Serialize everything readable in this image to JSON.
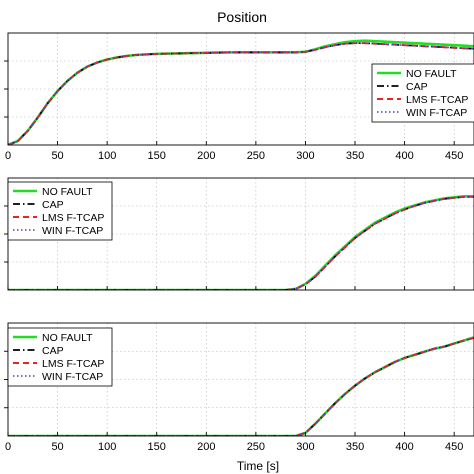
{
  "chart_data": [
    {
      "type": "line",
      "title": "Position",
      "xlabel": "",
      "ylabel": "",
      "xlim": [
        0,
        470
      ],
      "ylim": [
        0,
        1.1
      ],
      "xticks": [
        0,
        50,
        100,
        150,
        200,
        250,
        300,
        350,
        400,
        450
      ],
      "xtick_labels": [
        "0",
        "50",
        "100",
        "150",
        "200",
        "250",
        "300",
        "350",
        "400",
        "450"
      ],
      "grid": true,
      "legend": "right",
      "series": [
        {
          "name": "NO FAULT",
          "color": "#22dd22",
          "style": "solid",
          "x": [
            0,
            10,
            20,
            30,
            40,
            50,
            60,
            70,
            80,
            90,
            100,
            110,
            120,
            130,
            140,
            150,
            175,
            200,
            225,
            250,
            275,
            290,
            300,
            310,
            320,
            330,
            340,
            350,
            360,
            370,
            380,
            390,
            400,
            410,
            420,
            430,
            440,
            450,
            460,
            470
          ],
          "y": [
            0,
            0.04,
            0.14,
            0.27,
            0.41,
            0.53,
            0.63,
            0.71,
            0.77,
            0.81,
            0.84,
            0.86,
            0.875,
            0.885,
            0.89,
            0.895,
            0.9,
            0.905,
            0.91,
            0.91,
            0.91,
            0.91,
            0.915,
            0.94,
            0.97,
            0.99,
            1.01,
            1.02,
            1.025,
            1.02,
            1.015,
            1.01,
            1.005,
            1.0,
            0.995,
            0.99,
            0.985,
            0.98,
            0.975,
            0.97
          ]
        },
        {
          "name": "CAP",
          "color": "#000000",
          "style": "dashdot",
          "x": [
            0,
            10,
            20,
            30,
            40,
            50,
            60,
            70,
            80,
            90,
            100,
            110,
            120,
            130,
            140,
            150,
            175,
            200,
            225,
            250,
            275,
            290,
            300,
            310,
            320,
            330,
            340,
            350,
            360,
            370,
            380,
            390,
            400,
            410,
            420,
            430,
            440,
            450,
            460,
            470
          ],
          "y": [
            0,
            0.04,
            0.14,
            0.27,
            0.41,
            0.53,
            0.63,
            0.71,
            0.77,
            0.81,
            0.84,
            0.86,
            0.875,
            0.885,
            0.89,
            0.895,
            0.9,
            0.905,
            0.91,
            0.91,
            0.91,
            0.91,
            0.915,
            0.935,
            0.96,
            0.98,
            0.995,
            1.0,
            1.0,
            0.995,
            0.99,
            0.985,
            0.98,
            0.975,
            0.97,
            0.965,
            0.96,
            0.955,
            0.95,
            0.945
          ]
        },
        {
          "name": "LMS F-TCAP",
          "color": "#ee2222",
          "style": "dashed",
          "x": [
            0,
            10,
            20,
            30,
            40,
            50,
            60,
            70,
            80,
            90,
            100,
            110,
            120,
            130,
            140,
            150,
            175,
            200,
            225,
            250,
            275,
            290,
            300,
            310,
            320,
            330,
            340,
            350,
            360,
            370,
            380,
            390,
            400,
            410,
            420,
            430,
            440,
            450,
            460,
            470
          ],
          "y": [
            0,
            0.04,
            0.14,
            0.27,
            0.41,
            0.53,
            0.63,
            0.71,
            0.77,
            0.81,
            0.84,
            0.86,
            0.875,
            0.885,
            0.89,
            0.895,
            0.9,
            0.905,
            0.91,
            0.91,
            0.91,
            0.91,
            0.915,
            0.935,
            0.96,
            0.98,
            0.995,
            1.0,
            1.0,
            0.995,
            0.99,
            0.985,
            0.98,
            0.975,
            0.97,
            0.965,
            0.96,
            0.955,
            0.95,
            0.945
          ]
        },
        {
          "name": "WIN F-TCAP",
          "color": "#4444cc",
          "style": "dotted",
          "x": [
            0,
            10,
            20,
            30,
            40,
            50,
            60,
            70,
            80,
            90,
            100,
            110,
            120,
            130,
            140,
            150,
            175,
            200,
            225,
            250,
            275,
            290,
            300,
            310,
            320,
            330,
            340,
            350,
            360,
            370,
            380,
            390,
            400,
            410,
            420,
            430,
            440,
            450,
            460,
            470
          ],
          "y": [
            0,
            0.04,
            0.14,
            0.27,
            0.41,
            0.53,
            0.63,
            0.71,
            0.77,
            0.81,
            0.84,
            0.86,
            0.875,
            0.885,
            0.89,
            0.895,
            0.9,
            0.905,
            0.91,
            0.91,
            0.91,
            0.91,
            0.915,
            0.935,
            0.96,
            0.98,
            0.995,
            1.0,
            1.0,
            0.995,
            0.99,
            0.985,
            0.98,
            0.975,
            0.97,
            0.965,
            0.96,
            0.955,
            0.95,
            0.945
          ]
        }
      ]
    },
    {
      "type": "line",
      "title": "",
      "xlabel": "",
      "ylabel": "",
      "xlim": [
        0,
        470
      ],
      "ylim": [
        0,
        1.1
      ],
      "xticks": [
        0,
        50,
        100,
        150,
        200,
        250,
        300,
        350,
        400,
        450
      ],
      "xtick_labels": [],
      "grid": true,
      "legend": "left",
      "series": [
        {
          "name": "NO FAULT",
          "color": "#22dd22",
          "style": "solid",
          "x": [
            0,
            50,
            100,
            150,
            200,
            250,
            280,
            290,
            300,
            310,
            320,
            330,
            340,
            350,
            360,
            370,
            380,
            390,
            400,
            410,
            420,
            430,
            440,
            450,
            460,
            470
          ],
          "y": [
            0,
            0,
            0,
            0,
            0,
            0,
            0,
            0.01,
            0.06,
            0.14,
            0.24,
            0.34,
            0.43,
            0.52,
            0.59,
            0.66,
            0.71,
            0.76,
            0.8,
            0.83,
            0.86,
            0.88,
            0.9,
            0.91,
            0.92,
            0.92
          ]
        },
        {
          "name": "CAP",
          "color": "#000000",
          "style": "dashdot",
          "x": [
            0,
            50,
            100,
            150,
            200,
            250,
            280,
            290,
            300,
            310,
            320,
            330,
            340,
            350,
            360,
            370,
            380,
            390,
            400,
            410,
            420,
            430,
            440,
            450,
            460,
            470
          ],
          "y": [
            0,
            0,
            0,
            0,
            0,
            0,
            0,
            0.01,
            0.055,
            0.13,
            0.23,
            0.33,
            0.42,
            0.51,
            0.58,
            0.65,
            0.7,
            0.75,
            0.79,
            0.825,
            0.855,
            0.875,
            0.895,
            0.905,
            0.915,
            0.915
          ]
        },
        {
          "name": "LMS F-TCAP",
          "color": "#ee2222",
          "style": "dashed",
          "x": [
            0,
            50,
            100,
            150,
            200,
            250,
            280,
            290,
            300,
            310,
            320,
            330,
            340,
            350,
            360,
            370,
            380,
            390,
            400,
            410,
            420,
            430,
            440,
            450,
            460,
            470
          ],
          "y": [
            0,
            0,
            0,
            0,
            0,
            0,
            0,
            0.01,
            0.055,
            0.13,
            0.23,
            0.33,
            0.42,
            0.51,
            0.58,
            0.65,
            0.7,
            0.75,
            0.79,
            0.825,
            0.855,
            0.875,
            0.895,
            0.905,
            0.915,
            0.915
          ]
        },
        {
          "name": "WIN F-TCAP",
          "color": "#4444cc",
          "style": "dotted",
          "x": [
            0,
            50,
            100,
            150,
            200,
            250,
            280,
            290,
            300,
            310,
            320,
            330,
            340,
            350,
            360,
            370,
            380,
            390,
            400,
            410,
            420,
            430,
            440,
            450,
            460,
            470
          ],
          "y": [
            0,
            0,
            0,
            0,
            0,
            0,
            0,
            0.01,
            0.055,
            0.13,
            0.23,
            0.33,
            0.42,
            0.51,
            0.58,
            0.65,
            0.7,
            0.75,
            0.79,
            0.825,
            0.855,
            0.875,
            0.895,
            0.905,
            0.915,
            0.915
          ]
        }
      ]
    },
    {
      "type": "line",
      "title": "",
      "xlabel": "Time [s]",
      "ylabel": "",
      "xlim": [
        0,
        470
      ],
      "ylim": [
        0,
        1.1
      ],
      "xticks": [
        0,
        50,
        100,
        150,
        200,
        250,
        300,
        350,
        400,
        450
      ],
      "xtick_labels": [
        "0",
        "50",
        "100",
        "150",
        "200",
        "250",
        "300",
        "350",
        "400",
        "450"
      ],
      "grid": true,
      "legend": "left",
      "series": [
        {
          "name": "NO FAULT",
          "color": "#22dd22",
          "style": "solid",
          "x": [
            0,
            50,
            100,
            150,
            200,
            250,
            290,
            300,
            310,
            320,
            330,
            340,
            350,
            360,
            370,
            380,
            390,
            400,
            410,
            420,
            430,
            440,
            450,
            460,
            470
          ],
          "y": [
            0,
            0,
            0,
            0,
            0,
            0,
            0,
            0.03,
            0.12,
            0.22,
            0.32,
            0.41,
            0.49,
            0.56,
            0.62,
            0.67,
            0.72,
            0.76,
            0.79,
            0.82,
            0.85,
            0.87,
            0.9,
            0.93,
            0.96
          ]
        },
        {
          "name": "CAP",
          "color": "#000000",
          "style": "dashdot",
          "x": [
            0,
            50,
            100,
            150,
            200,
            250,
            290,
            300,
            310,
            320,
            330,
            340,
            350,
            360,
            370,
            380,
            390,
            400,
            410,
            420,
            430,
            440,
            450,
            460,
            470
          ],
          "y": [
            0,
            0,
            0,
            0,
            0,
            0,
            0,
            0.03,
            0.12,
            0.22,
            0.32,
            0.41,
            0.49,
            0.56,
            0.62,
            0.67,
            0.72,
            0.76,
            0.79,
            0.82,
            0.85,
            0.87,
            0.9,
            0.93,
            0.955
          ]
        },
        {
          "name": "LMS F-TCAP",
          "color": "#ee2222",
          "style": "dashed",
          "x": [
            0,
            50,
            100,
            150,
            200,
            250,
            290,
            300,
            310,
            320,
            330,
            340,
            350,
            360,
            370,
            380,
            390,
            400,
            410,
            420,
            430,
            440,
            450,
            460,
            470
          ],
          "y": [
            0,
            0,
            0,
            0,
            0,
            0,
            0,
            0.03,
            0.12,
            0.22,
            0.32,
            0.41,
            0.49,
            0.56,
            0.62,
            0.67,
            0.72,
            0.76,
            0.79,
            0.82,
            0.85,
            0.87,
            0.9,
            0.93,
            0.955
          ]
        },
        {
          "name": "WIN F-TCAP",
          "color": "#4444cc",
          "style": "dotted",
          "x": [
            0,
            50,
            100,
            150,
            200,
            250,
            290,
            300,
            310,
            320,
            330,
            340,
            350,
            360,
            370,
            380,
            390,
            400,
            410,
            420,
            430,
            440,
            450,
            460,
            470
          ],
          "y": [
            0,
            0,
            0,
            0,
            0,
            0,
            0,
            0.03,
            0.12,
            0.22,
            0.32,
            0.41,
            0.49,
            0.56,
            0.62,
            0.67,
            0.72,
            0.76,
            0.79,
            0.82,
            0.85,
            0.87,
            0.9,
            0.93,
            0.955
          ]
        }
      ]
    }
  ]
}
